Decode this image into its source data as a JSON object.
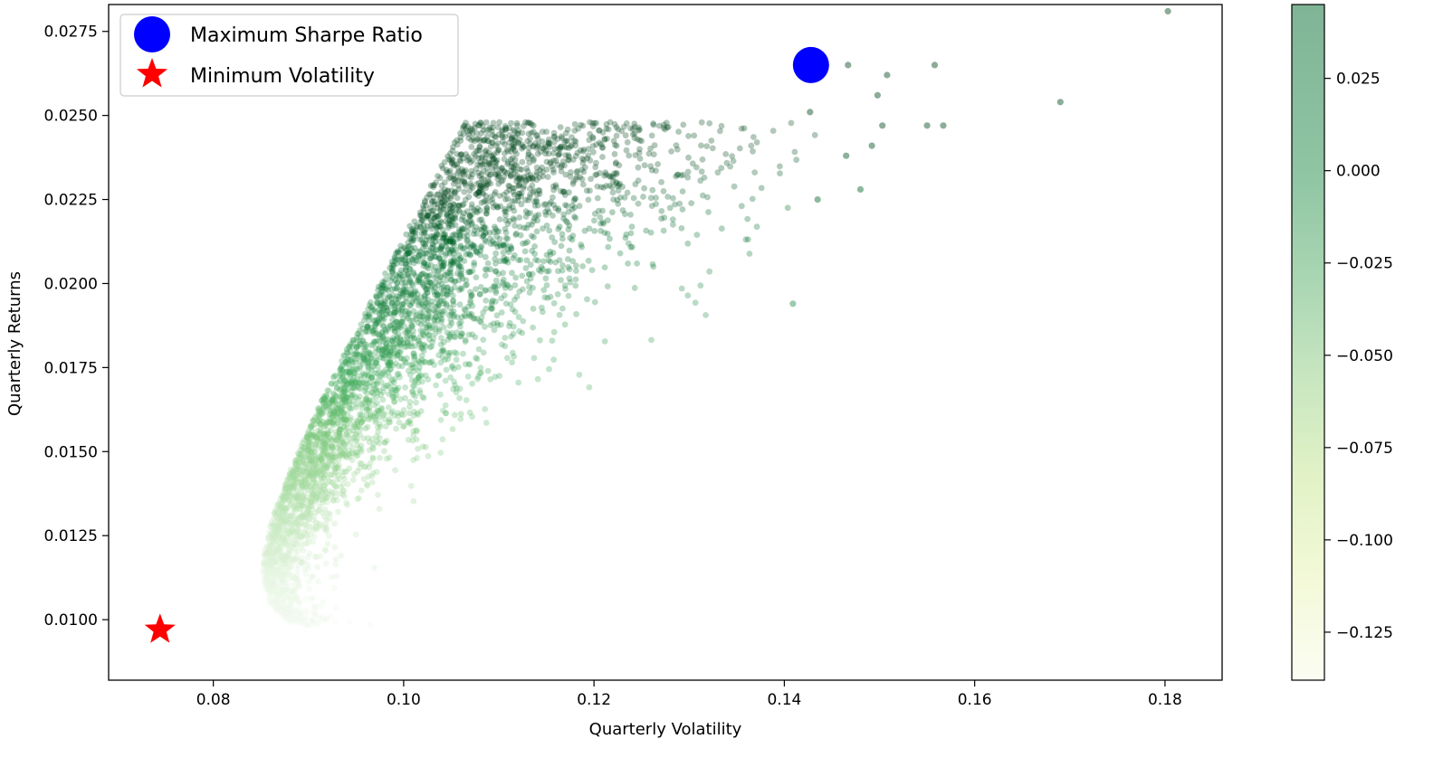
{
  "chart_data": {
    "type": "scatter",
    "xlabel": "Quarterly Volatility",
    "ylabel": "Quarterly Returns",
    "xlim": [
      0.069,
      0.186
    ],
    "ylim": [
      0.0082,
      0.0283
    ],
    "x_ticks": [
      {
        "value": 0.08,
        "label": "0.08"
      },
      {
        "value": 0.1,
        "label": "0.10"
      },
      {
        "value": 0.12,
        "label": "0.12"
      },
      {
        "value": 0.14,
        "label": "0.14"
      },
      {
        "value": 0.16,
        "label": "0.16"
      },
      {
        "value": 0.18,
        "label": "0.18"
      }
    ],
    "y_ticks": [
      {
        "value": 0.01,
        "label": "0.0100"
      },
      {
        "value": 0.0125,
        "label": "0.0125"
      },
      {
        "value": 0.015,
        "label": "0.0150"
      },
      {
        "value": 0.0175,
        "label": "0.0175"
      },
      {
        "value": 0.02,
        "label": "0.0200"
      },
      {
        "value": 0.0225,
        "label": "0.0225"
      },
      {
        "value": 0.025,
        "label": "0.0250"
      },
      {
        "value": 0.0275,
        "label": "0.0275"
      }
    ],
    "grid": false,
    "legend_position": "top-left",
    "legend": [
      {
        "label": "Maximum Sharpe Ratio",
        "marker": "circle",
        "color": "#0000ff"
      },
      {
        "label": "Minimum Volatility",
        "marker": "star",
        "color": "#ff0000"
      }
    ],
    "highlight_points": [
      {
        "name": "Maximum Sharpe Ratio",
        "x": 0.1428,
        "y": 0.0265,
        "marker": "circle",
        "color": "#0000ff"
      },
      {
        "name": "Minimum Volatility",
        "x": 0.0744,
        "y": 0.0097,
        "marker": "star",
        "color": "#ff0000"
      }
    ],
    "scatter_series": {
      "colormap": "Greens",
      "alpha": 0.3,
      "color_by": "Sharpe ratio",
      "outlier_points": [
        {
          "x": 0.1803,
          "y": 0.0281
        },
        {
          "x": 0.169,
          "y": 0.0254
        },
        {
          "x": 0.1558,
          "y": 0.0265
        },
        {
          "x": 0.1567,
          "y": 0.0247
        },
        {
          "x": 0.155,
          "y": 0.0247
        },
        {
          "x": 0.1508,
          "y": 0.0262
        },
        {
          "x": 0.1498,
          "y": 0.0256
        },
        {
          "x": 0.1503,
          "y": 0.0247
        },
        {
          "x": 0.148,
          "y": 0.0228
        },
        {
          "x": 0.1492,
          "y": 0.0241
        },
        {
          "x": 0.1467,
          "y": 0.0265
        },
        {
          "x": 0.1435,
          "y": 0.0225
        },
        {
          "x": 0.1409,
          "y": 0.0194
        },
        {
          "x": 0.1427,
          "y": 0.0251
        },
        {
          "x": 0.1465,
          "y": 0.0238
        }
      ],
      "cloud": {
        "x_min": 0.075,
        "x_max": 0.144,
        "y_min": 0.009,
        "y_max": 0.0262
      }
    },
    "colorbar": {
      "range": [
        -0.138,
        0.045
      ],
      "colormap": "Greens",
      "ticks": [
        {
          "value": 0.025,
          "label": "0.025"
        },
        {
          "value": 0.0,
          "label": "0.000"
        },
        {
          "value": -0.025,
          "label": "−0.025"
        },
        {
          "value": -0.05,
          "label": "−0.050"
        },
        {
          "value": -0.075,
          "label": "−0.075"
        },
        {
          "value": -0.1,
          "label": "−0.100"
        },
        {
          "value": -0.125,
          "label": "−0.125"
        }
      ]
    }
  }
}
